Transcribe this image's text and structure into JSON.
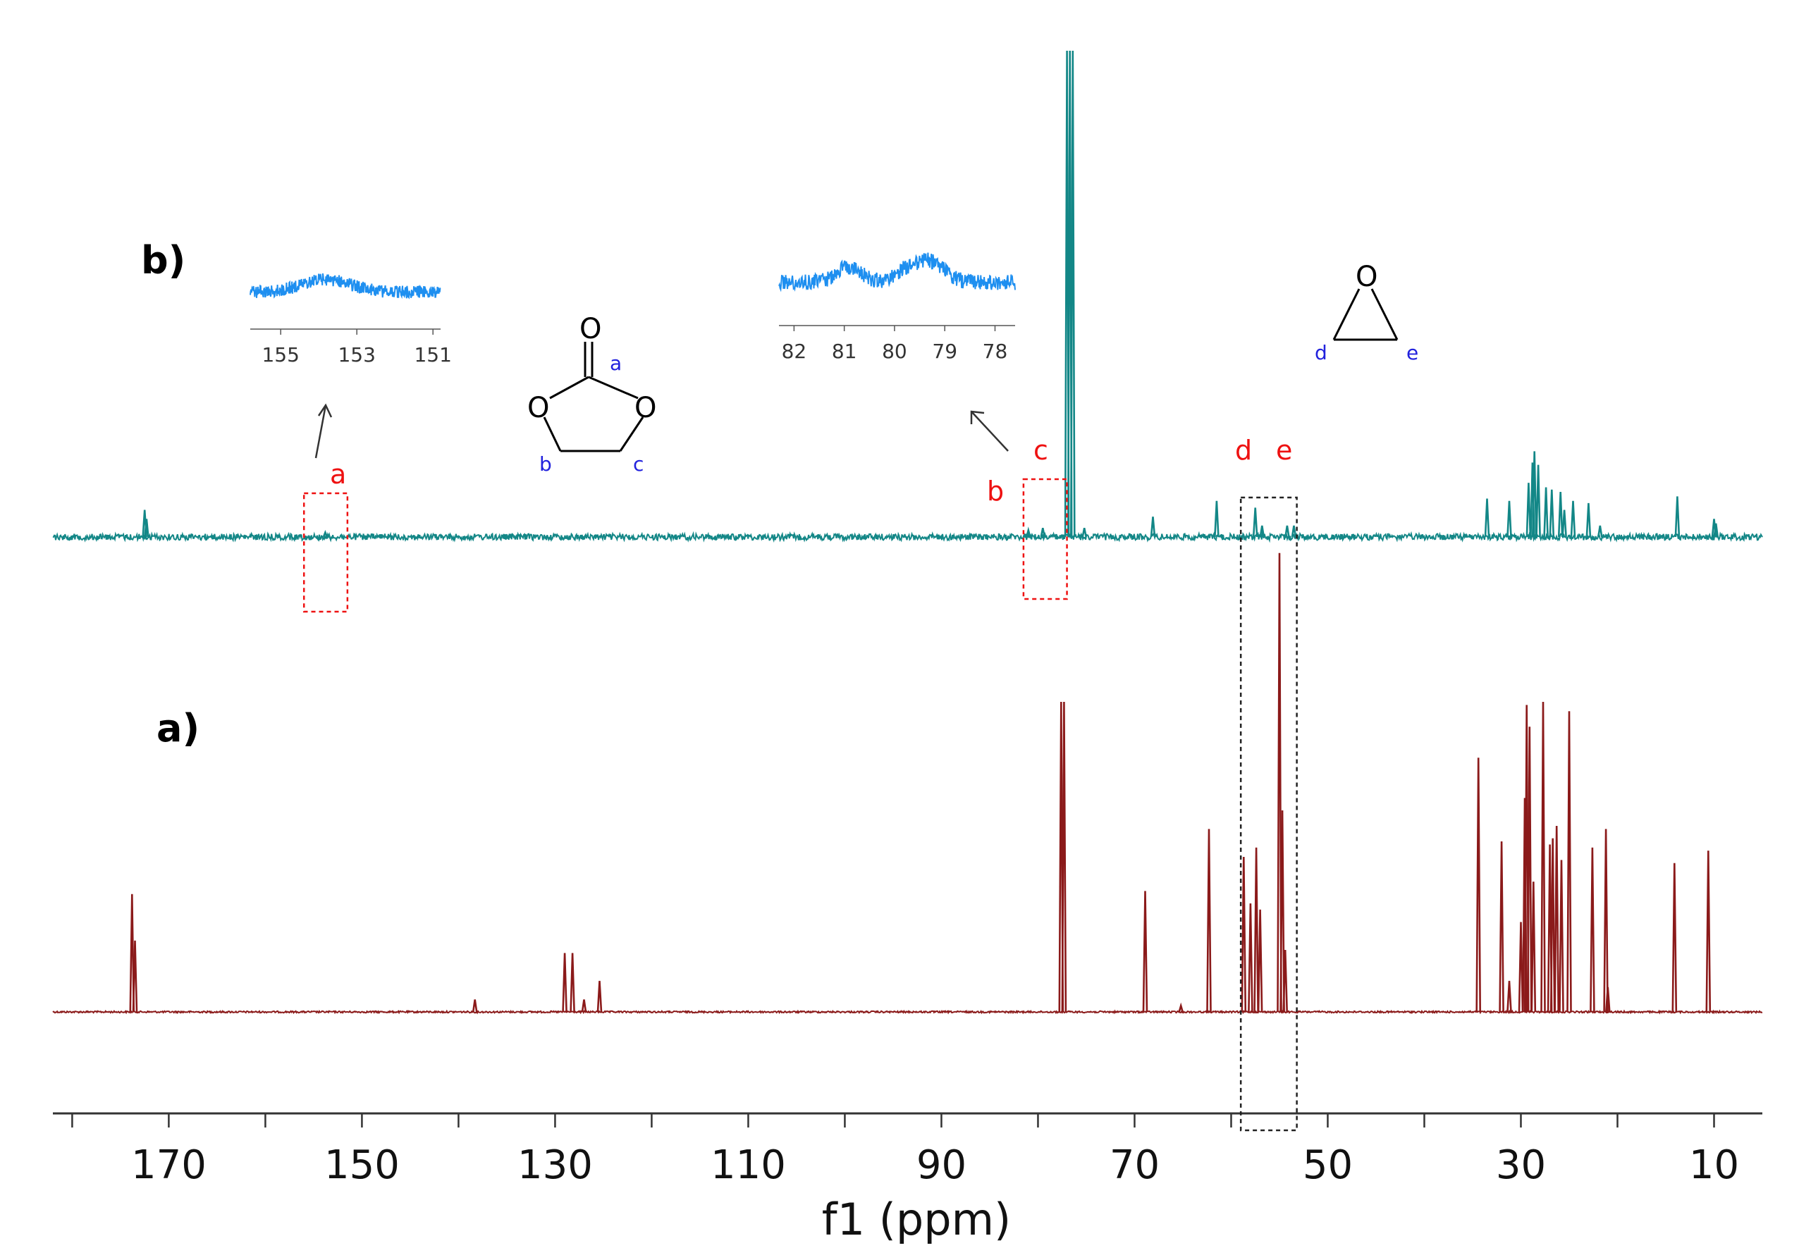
{
  "chart_data": {
    "type": "line",
    "title": "",
    "xlabel": "f1 (ppm)",
    "ylabel": "",
    "xlim": [
      182,
      5
    ],
    "x_reversed": true,
    "x_ticks": [
      170,
      150,
      130,
      110,
      90,
      70,
      50,
      30,
      10
    ],
    "grid": false,
    "legend": "none",
    "panel_labels": [
      "b)",
      "a)"
    ],
    "series": [
      {
        "name": "a)",
        "color": "#8b1a1a",
        "peaks": [
          {
            "ppm": 173.8,
            "height": 0.38
          },
          {
            "ppm": 173.5,
            "height": 0.23
          },
          {
            "ppm": 138.3,
            "height": 0.04
          },
          {
            "ppm": 129.0,
            "height": 0.19
          },
          {
            "ppm": 128.2,
            "height": 0.19
          },
          {
            "ppm": 127.0,
            "height": 0.04
          },
          {
            "ppm": 125.4,
            "height": 0.1
          },
          {
            "ppm": 77.6,
            "height": 1.0
          },
          {
            "ppm": 77.3,
            "height": 1.0
          },
          {
            "ppm": 68.9,
            "height": 0.39
          },
          {
            "ppm": 65.2,
            "height": 0.02
          },
          {
            "ppm": 62.3,
            "height": 0.59
          },
          {
            "ppm": 58.7,
            "height": 0.5
          },
          {
            "ppm": 58.0,
            "height": 0.35
          },
          {
            "ppm": 57.4,
            "height": 0.53
          },
          {
            "ppm": 57.0,
            "height": 0.33
          },
          {
            "ppm": 55.0,
            "height": 1.48
          },
          {
            "ppm": 54.7,
            "height": 0.65
          },
          {
            "ppm": 54.4,
            "height": 0.2
          },
          {
            "ppm": 34.4,
            "height": 0.82
          },
          {
            "ppm": 32.0,
            "height": 0.55
          },
          {
            "ppm": 31.2,
            "height": 0.1
          },
          {
            "ppm": 30.0,
            "height": 0.29
          },
          {
            "ppm": 29.6,
            "height": 0.69
          },
          {
            "ppm": 29.4,
            "height": 0.99
          },
          {
            "ppm": 29.1,
            "height": 0.92
          },
          {
            "ppm": 28.7,
            "height": 0.42
          },
          {
            "ppm": 27.7,
            "height": 1.0
          },
          {
            "ppm": 27.0,
            "height": 0.54
          },
          {
            "ppm": 26.7,
            "height": 0.56
          },
          {
            "ppm": 26.3,
            "height": 0.6
          },
          {
            "ppm": 25.8,
            "height": 0.49
          },
          {
            "ppm": 25.0,
            "height": 0.97
          },
          {
            "ppm": 22.6,
            "height": 0.53
          },
          {
            "ppm": 21.2,
            "height": 0.59
          },
          {
            "ppm": 21.0,
            "height": 0.08
          },
          {
            "ppm": 14.1,
            "height": 0.48
          },
          {
            "ppm": 10.6,
            "height": 0.52
          }
        ]
      },
      {
        "name": "b)",
        "color": "#138787",
        "peaks": [
          {
            "ppm": 172.5,
            "height": 0.12
          },
          {
            "ppm": 172.3,
            "height": 0.08
          },
          {
            "ppm": 153.8,
            "height": 0.02
          },
          {
            "ppm": 81.0,
            "height": 0.03
          },
          {
            "ppm": 79.5,
            "height": 0.04
          },
          {
            "ppm": 77.0,
            "height": 3.0
          },
          {
            "ppm": 76.7,
            "height": 3.0
          },
          {
            "ppm": 76.4,
            "height": 3.0
          },
          {
            "ppm": 75.2,
            "height": 0.04
          },
          {
            "ppm": 68.1,
            "height": 0.09
          },
          {
            "ppm": 61.5,
            "height": 0.16
          },
          {
            "ppm": 57.5,
            "height": 0.13
          },
          {
            "ppm": 56.8,
            "height": 0.05
          },
          {
            "ppm": 54.2,
            "height": 0.05
          },
          {
            "ppm": 53.5,
            "height": 0.05
          },
          {
            "ppm": 33.5,
            "height": 0.17
          },
          {
            "ppm": 31.2,
            "height": 0.16
          },
          {
            "ppm": 29.2,
            "height": 0.24
          },
          {
            "ppm": 28.8,
            "height": 0.33
          },
          {
            "ppm": 28.6,
            "height": 0.38
          },
          {
            "ppm": 28.2,
            "height": 0.32
          },
          {
            "ppm": 27.4,
            "height": 0.22
          },
          {
            "ppm": 26.8,
            "height": 0.21
          },
          {
            "ppm": 25.9,
            "height": 0.2
          },
          {
            "ppm": 25.5,
            "height": 0.12
          },
          {
            "ppm": 24.6,
            "height": 0.16
          },
          {
            "ppm": 23.0,
            "height": 0.15
          },
          {
            "ppm": 21.8,
            "height": 0.05
          },
          {
            "ppm": 13.8,
            "height": 0.18
          },
          {
            "ppm": 10.0,
            "height": 0.08
          },
          {
            "ppm": 9.8,
            "height": 0.06
          }
        ]
      }
    ],
    "annotations": {
      "peak_labels": [
        "a",
        "b",
        "c",
        "d",
        "e"
      ],
      "carbonate_structure": {
        "atoms": [
          "O",
          "O",
          "O"
        ],
        "letters": [
          "a",
          "b",
          "c"
        ]
      },
      "epoxide_structure": {
        "atoms": [
          "O"
        ],
        "letters": [
          "d",
          "e"
        ]
      },
      "inset_a": {
        "ticks": [
          "155",
          "153",
          "151"
        ],
        "range": [
          155.8,
          150.8
        ]
      },
      "inset_bc": {
        "ticks": [
          "82",
          "81",
          "80",
          "79",
          "78"
        ],
        "range": [
          82.3,
          77.6
        ]
      },
      "highlight_boxes": [
        {
          "from_ppm": 156.0,
          "to_ppm": 151.5,
          "color": "#ee1111"
        },
        {
          "from_ppm": 81.5,
          "to_ppm": 77.0,
          "color": "#ee1111"
        },
        {
          "from_ppm": 59.0,
          "to_ppm": 53.2,
          "color": "#222222"
        }
      ]
    }
  }
}
